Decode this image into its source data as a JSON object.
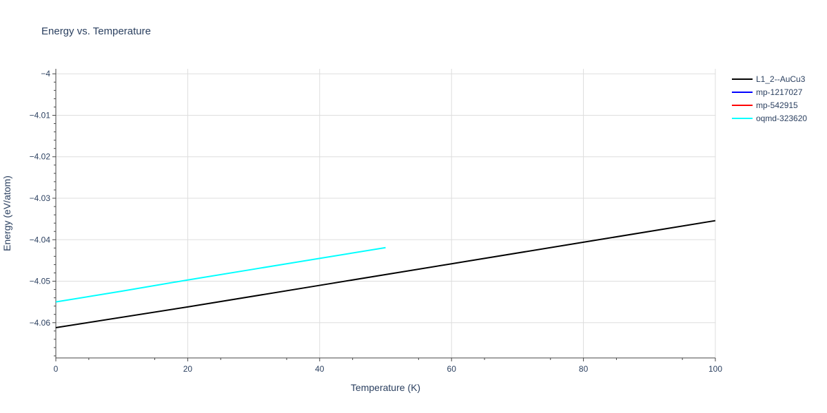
{
  "chart_data": {
    "type": "line",
    "title": "Energy vs. Temperature",
    "xlabel": "Temperature (K)",
    "ylabel": "Energy (eV/atom)",
    "xlim": [
      0,
      100
    ],
    "ylim": [
      -4.0685,
      -3.9988
    ],
    "x_ticks": [
      0,
      20,
      40,
      60,
      80,
      100
    ],
    "x_tick_labels": [
      "0",
      "20",
      "40",
      "60",
      "80",
      "100"
    ],
    "y_ticks": [
      -4.06,
      -4.05,
      -4.04,
      -4.03,
      -4.02,
      -4.01,
      -4
    ],
    "y_tick_labels": [
      "−4.06",
      "−4.05",
      "−4.04",
      "−4.03",
      "−4.02",
      "−4.01",
      "−4"
    ],
    "grid": true,
    "legend_position": "top-right",
    "series": [
      {
        "name": "L1_2--AuCu3",
        "color": "#000000",
        "x": [
          0,
          20,
          40,
          60,
          80,
          100
        ],
        "y": [
          -4.0612,
          -4.0562,
          -4.051,
          -4.0458,
          -4.0406,
          -4.0354
        ]
      },
      {
        "name": "mp-1217027",
        "color": "#0000ff",
        "x": [],
        "y": []
      },
      {
        "name": "mp-542915",
        "color": "#ff0000",
        "x": [],
        "y": []
      },
      {
        "name": "oqmd-323620",
        "color": "#00ffff",
        "x": [
          0,
          10,
          20,
          30,
          40,
          50
        ],
        "y": [
          -4.055,
          -4.0524,
          -4.0497,
          -4.0471,
          -4.0445,
          -4.0419
        ]
      }
    ]
  }
}
